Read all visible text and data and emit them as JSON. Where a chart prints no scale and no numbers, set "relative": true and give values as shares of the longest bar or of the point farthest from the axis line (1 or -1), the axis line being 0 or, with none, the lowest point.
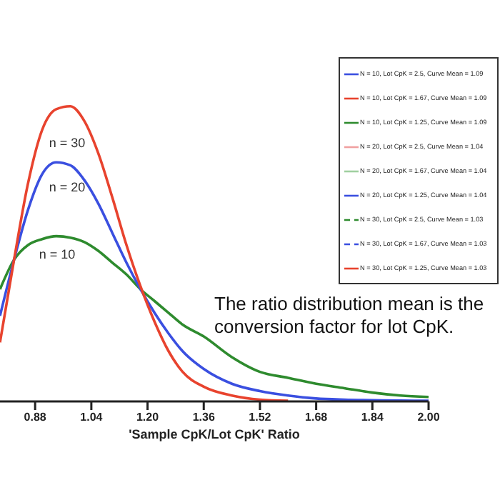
{
  "chart_data": {
    "type": "line",
    "xlabel": "'Sample CpK/Lot CpK' Ratio",
    "relative": true,
    "legend": "top right",
    "marker": "none",
    "x": [
      0.78,
      0.82,
      0.86,
      0.9,
      0.94,
      0.98,
      1.02,
      1.06,
      1.1,
      1.14,
      1.18,
      1.22,
      1.26,
      1.3,
      1.36,
      1.44,
      1.52,
      1.6,
      1.68,
      1.76,
      1.84,
      1.92,
      2.0
    ],
    "xlim": [
      0.78,
      2.0
    ],
    "xticks": [
      0.88,
      1.04,
      {
        "value": 1.2,
        "label": "1.20"
      },
      1.36,
      1.52,
      1.68,
      1.84,
      {
        "value": 2,
        "label": "2.00"
      }
    ],
    "series": [
      {
        "name": "N = 10, Lot CpK = 2.5, Curve Mean = 1.09",
        "color": "#3a4fe0",
        "values": [
          null,
          null,
          null,
          null,
          null,
          null,
          null,
          null,
          null,
          null,
          null,
          null,
          null,
          null,
          null,
          null,
          null,
          null,
          null,
          null,
          null,
          null,
          null
        ]
      },
      {
        "name": "N = 10, Lot CpK = 1.67, Curve Mean = 1.09",
        "color": "#e8432e",
        "values": [
          null,
          null,
          null,
          null,
          null,
          null,
          null,
          null,
          null,
          null,
          null,
          null,
          null,
          null,
          null,
          null,
          null,
          null,
          null,
          null,
          null,
          null,
          null
        ]
      },
      {
        "name": "N = 10, Lot CpK = 1.25, Curve Mean = 1.09",
        "color": "#2e8b2e",
        "values": [
          0.38,
          0.48,
          0.53,
          0.55,
          0.56,
          0.555,
          0.54,
          0.51,
          0.47,
          0.43,
          0.38,
          0.34,
          0.3,
          0.26,
          0.22,
          0.15,
          0.1,
          0.08,
          0.06,
          0.045,
          0.03,
          0.02,
          0.015
        ]
      },
      {
        "name": "N = 20, Lot CpK = 2.5, Curve Mean = 1.04",
        "color": "#f0a0a0",
        "values": [
          null,
          null,
          null,
          null,
          null,
          null,
          null,
          null,
          null,
          null,
          null,
          null,
          null,
          null,
          null,
          null,
          null,
          null,
          null,
          null,
          null,
          null,
          null
        ]
      },
      {
        "name": "N = 20, Lot CpK = 1.67, Curve Mean = 1.04",
        "color": "#a0d0a0",
        "values": [
          null,
          null,
          null,
          null,
          null,
          null,
          null,
          null,
          null,
          null,
          null,
          null,
          null,
          null,
          null,
          null,
          null,
          null,
          null,
          null,
          null,
          null,
          null
        ]
      },
      {
        "name": "N = 20, Lot CpK = 1.25, Curve Mean = 1.04",
        "color": "#3a4fe0",
        "values": [
          0.29,
          0.48,
          0.65,
          0.77,
          0.81,
          0.8,
          0.75,
          0.67,
          0.57,
          0.47,
          0.38,
          0.3,
          0.23,
          0.17,
          0.11,
          0.06,
          0.035,
          0.02,
          0.01,
          0.006,
          0.004,
          0.003,
          0.002
        ]
      },
      {
        "name": "N = 30, Lot CpK = 2.5, Curve Mean = 1.03",
        "color": "#2e8b2e",
        "line_style": "dashed",
        "values": [
          null,
          null,
          null,
          null,
          null,
          null,
          null,
          null,
          null,
          null,
          null,
          null,
          null,
          null,
          null,
          null,
          null,
          null,
          null,
          null,
          null,
          null,
          null
        ]
      },
      {
        "name": "N = 30, Lot CpK = 1.67, Curve Mean = 1.03",
        "color": "#3a4fe0",
        "line_style": "dashed",
        "values": [
          null,
          null,
          null,
          null,
          null,
          null,
          null,
          null,
          null,
          null,
          null,
          null,
          null,
          null,
          null,
          null,
          null,
          null,
          null,
          null,
          null,
          null,
          null
        ]
      },
      {
        "name": "N = 30, Lot CpK = 1.25, Curve Mean = 1.03",
        "color": "#e8432e",
        "values": [
          0.2,
          0.48,
          0.74,
          0.92,
          0.99,
          1.0,
          0.95,
          0.84,
          0.69,
          0.53,
          0.39,
          0.27,
          0.17,
          0.1,
          0.05,
          0.02,
          0.006,
          0.002,
          null,
          null,
          null,
          null,
          null
        ]
      }
    ],
    "annotations": [
      "n = 30",
      "n = 20",
      "n = 10",
      "The ratio distribution mean is the conversion factor for lot CpK."
    ]
  }
}
